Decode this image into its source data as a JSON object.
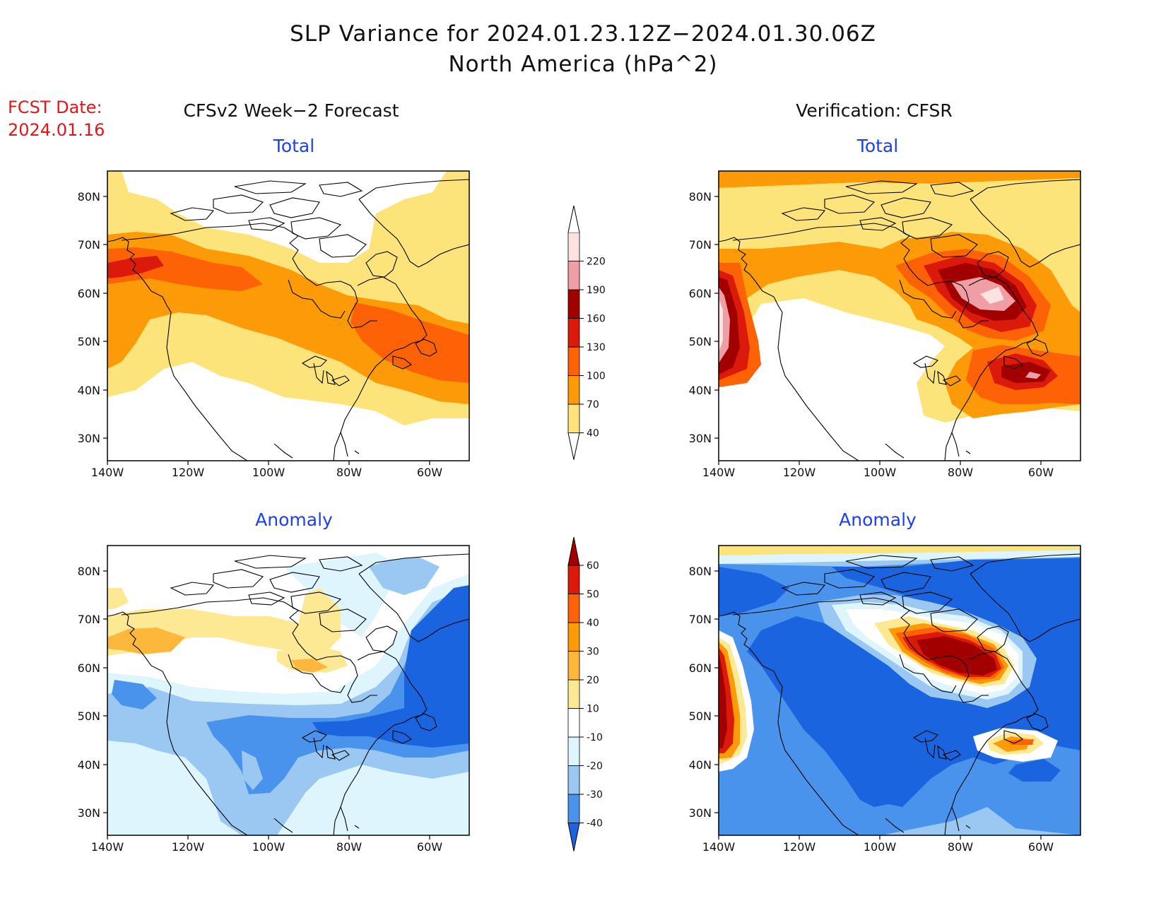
{
  "title": {
    "line1": "SLP Variance for 2024.01.23.12Z−2024.01.30.06Z",
    "line2": "North America (hPa^2)"
  },
  "fcst": {
    "label": "FCST Date:",
    "date": "2024.01.16"
  },
  "columns": {
    "left": "CFSv2 Week−2 Forecast",
    "right": "Verification: CFSR"
  },
  "panels": {
    "top_left_title": "Total",
    "top_right_title": "Total",
    "bottom_left_title": "Anomaly",
    "bottom_right_title": "Anomaly"
  },
  "axes": {
    "lat_labels": [
      "80N",
      "70N",
      "60N",
      "50N",
      "40N",
      "30N"
    ],
    "lon_labels": [
      "140W",
      "120W",
      "100W",
      "80W",
      "60W"
    ]
  },
  "colorbar_total": {
    "levels": [
      "40",
      "70",
      "100",
      "130",
      "160",
      "190",
      "220"
    ],
    "colors": [
      "#fde47a",
      "#fd9a08",
      "#fd6206",
      "#dc1a0b",
      "#a20000",
      "#f09ea6",
      "#fde2e2"
    ]
  },
  "colorbar_anomaly": {
    "levels": [
      "-40",
      "-30",
      "-20",
      "-10",
      "10",
      "20",
      "30",
      "40",
      "50",
      "60"
    ],
    "colors": [
      "#1a64e0",
      "#4a93ec",
      "#9ac8f3",
      "#dff5fd",
      "#ffffff",
      "#fde894",
      "#fdb83c",
      "#fd9a08",
      "#fd6206",
      "#dc1a0b",
      "#a20000"
    ]
  },
  "colors": {
    "fcst_text": "#e8141a",
    "subtitle_text": "#1c3ff2"
  }
}
